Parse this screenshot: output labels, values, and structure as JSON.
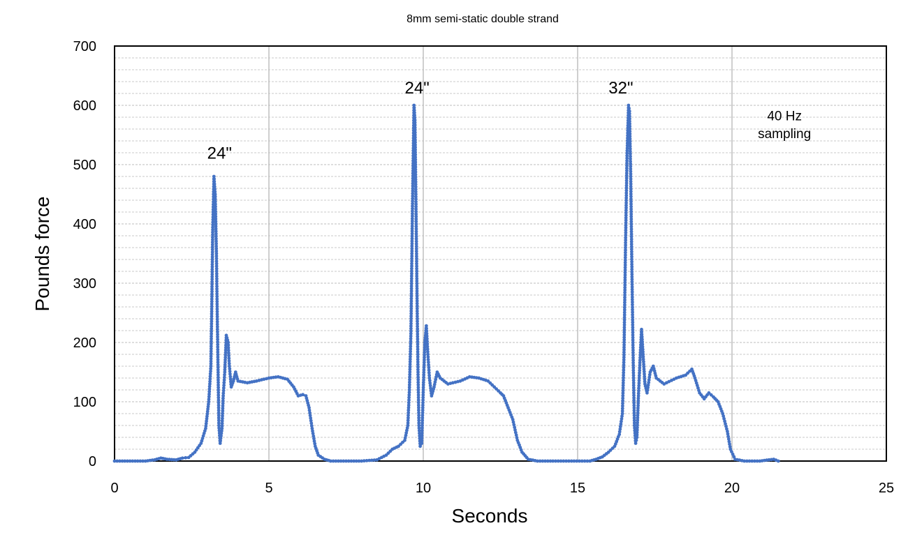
{
  "chart_data": {
    "type": "line",
    "title": "8mm semi-static double strand",
    "xlabel": "Seconds",
    "ylabel": "Pounds force",
    "xlim": [
      0,
      25
    ],
    "ylim": [
      0,
      700
    ],
    "x_ticks": [
      "0",
      "5",
      "10",
      "15",
      "20",
      "25"
    ],
    "y_ticks": [
      "0",
      "100",
      "200",
      "300",
      "400",
      "500",
      "600",
      "700"
    ],
    "grid": {
      "major_x": true,
      "major_y": false,
      "minor_y": true,
      "minor_y_step": 20
    },
    "legend": "none",
    "series_color": "#4472C4",
    "markers": true,
    "annotations": [
      {
        "text": "24\"",
        "x": 3.4,
        "y": 510
      },
      {
        "text": "24\"",
        "x": 9.8,
        "y": 620
      },
      {
        "text": "32\"",
        "x": 16.4,
        "y": 620
      },
      {
        "text": "40 Hz",
        "x": 21.7,
        "y": 575
      },
      {
        "text": "sampling",
        "x": 21.7,
        "y": 545
      }
    ],
    "series": [
      {
        "points": [
          [
            0,
            0
          ],
          [
            0.5,
            0
          ],
          [
            1.0,
            0
          ],
          [
            1.3,
            2
          ],
          [
            1.5,
            5
          ],
          [
            1.7,
            3
          ],
          [
            2.0,
            2
          ],
          [
            2.2,
            5
          ],
          [
            2.4,
            6
          ],
          [
            2.6,
            15
          ],
          [
            2.8,
            30
          ],
          [
            2.95,
            55
          ],
          [
            3.05,
            100
          ],
          [
            3.12,
            160
          ],
          [
            3.15,
            265
          ],
          [
            3.18,
            390
          ],
          [
            3.22,
            480
          ],
          [
            3.26,
            450
          ],
          [
            3.3,
            350
          ],
          [
            3.33,
            235
          ],
          [
            3.38,
            60
          ],
          [
            3.42,
            30
          ],
          [
            3.48,
            55
          ],
          [
            3.52,
            110
          ],
          [
            3.57,
            150
          ],
          [
            3.62,
            212
          ],
          [
            3.68,
            200
          ],
          [
            3.72,
            160
          ],
          [
            3.78,
            125
          ],
          [
            3.85,
            135
          ],
          [
            3.92,
            150
          ],
          [
            4.0,
            135
          ],
          [
            4.3,
            132
          ],
          [
            4.6,
            135
          ],
          [
            5.0,
            140
          ],
          [
            5.3,
            142
          ],
          [
            5.6,
            138
          ],
          [
            5.8,
            125
          ],
          [
            5.95,
            110
          ],
          [
            6.1,
            112
          ],
          [
            6.2,
            110
          ],
          [
            6.3,
            90
          ],
          [
            6.4,
            55
          ],
          [
            6.5,
            25
          ],
          [
            6.6,
            10
          ],
          [
            6.8,
            3
          ],
          [
            7.0,
            0
          ],
          [
            7.5,
            0
          ],
          [
            8.0,
            0
          ],
          [
            8.5,
            2
          ],
          [
            8.8,
            10
          ],
          [
            9.0,
            20
          ],
          [
            9.2,
            25
          ],
          [
            9.4,
            35
          ],
          [
            9.5,
            60
          ],
          [
            9.55,
            120
          ],
          [
            9.6,
            215
          ],
          [
            9.65,
            430
          ],
          [
            9.7,
            600
          ],
          [
            9.73,
            575
          ],
          [
            9.76,
            450
          ],
          [
            9.8,
            270
          ],
          [
            9.83,
            150
          ],
          [
            9.86,
            60
          ],
          [
            9.9,
            25
          ],
          [
            9.95,
            30
          ],
          [
            10.0,
            120
          ],
          [
            10.05,
            200
          ],
          [
            10.1,
            228
          ],
          [
            10.15,
            180
          ],
          [
            10.2,
            140
          ],
          [
            10.27,
            110
          ],
          [
            10.35,
            125
          ],
          [
            10.45,
            150
          ],
          [
            10.55,
            140
          ],
          [
            10.8,
            130
          ],
          [
            11.2,
            135
          ],
          [
            11.5,
            142
          ],
          [
            11.8,
            140
          ],
          [
            12.1,
            135
          ],
          [
            12.3,
            125
          ],
          [
            12.5,
            115
          ],
          [
            12.6,
            110
          ],
          [
            12.75,
            90
          ],
          [
            12.9,
            70
          ],
          [
            13.05,
            35
          ],
          [
            13.2,
            15
          ],
          [
            13.4,
            3
          ],
          [
            13.7,
            0
          ],
          [
            14.2,
            0
          ],
          [
            14.8,
            0
          ],
          [
            15.4,
            0
          ],
          [
            15.6,
            3
          ],
          [
            15.8,
            7
          ],
          [
            16.0,
            15
          ],
          [
            16.2,
            25
          ],
          [
            16.35,
            45
          ],
          [
            16.45,
            80
          ],
          [
            16.5,
            175
          ],
          [
            16.55,
            360
          ],
          [
            16.6,
            515
          ],
          [
            16.65,
            600
          ],
          [
            16.68,
            590
          ],
          [
            16.72,
            480
          ],
          [
            16.76,
            315
          ],
          [
            16.8,
            170
          ],
          [
            16.84,
            60
          ],
          [
            16.88,
            30
          ],
          [
            16.92,
            40
          ],
          [
            16.97,
            110
          ],
          [
            17.02,
            170
          ],
          [
            17.07,
            222
          ],
          [
            17.12,
            180
          ],
          [
            17.18,
            130
          ],
          [
            17.25,
            115
          ],
          [
            17.35,
            150
          ],
          [
            17.45,
            160
          ],
          [
            17.55,
            140
          ],
          [
            17.8,
            130
          ],
          [
            18.2,
            140
          ],
          [
            18.5,
            145
          ],
          [
            18.7,
            155
          ],
          [
            18.8,
            140
          ],
          [
            18.95,
            115
          ],
          [
            19.1,
            105
          ],
          [
            19.25,
            115
          ],
          [
            19.4,
            108
          ],
          [
            19.55,
            100
          ],
          [
            19.7,
            80
          ],
          [
            19.85,
            50
          ],
          [
            19.95,
            20
          ],
          [
            20.1,
            3
          ],
          [
            20.4,
            0
          ],
          [
            20.9,
            0
          ],
          [
            21.2,
            2
          ],
          [
            21.35,
            3
          ],
          [
            21.5,
            0
          ]
        ]
      }
    ]
  }
}
